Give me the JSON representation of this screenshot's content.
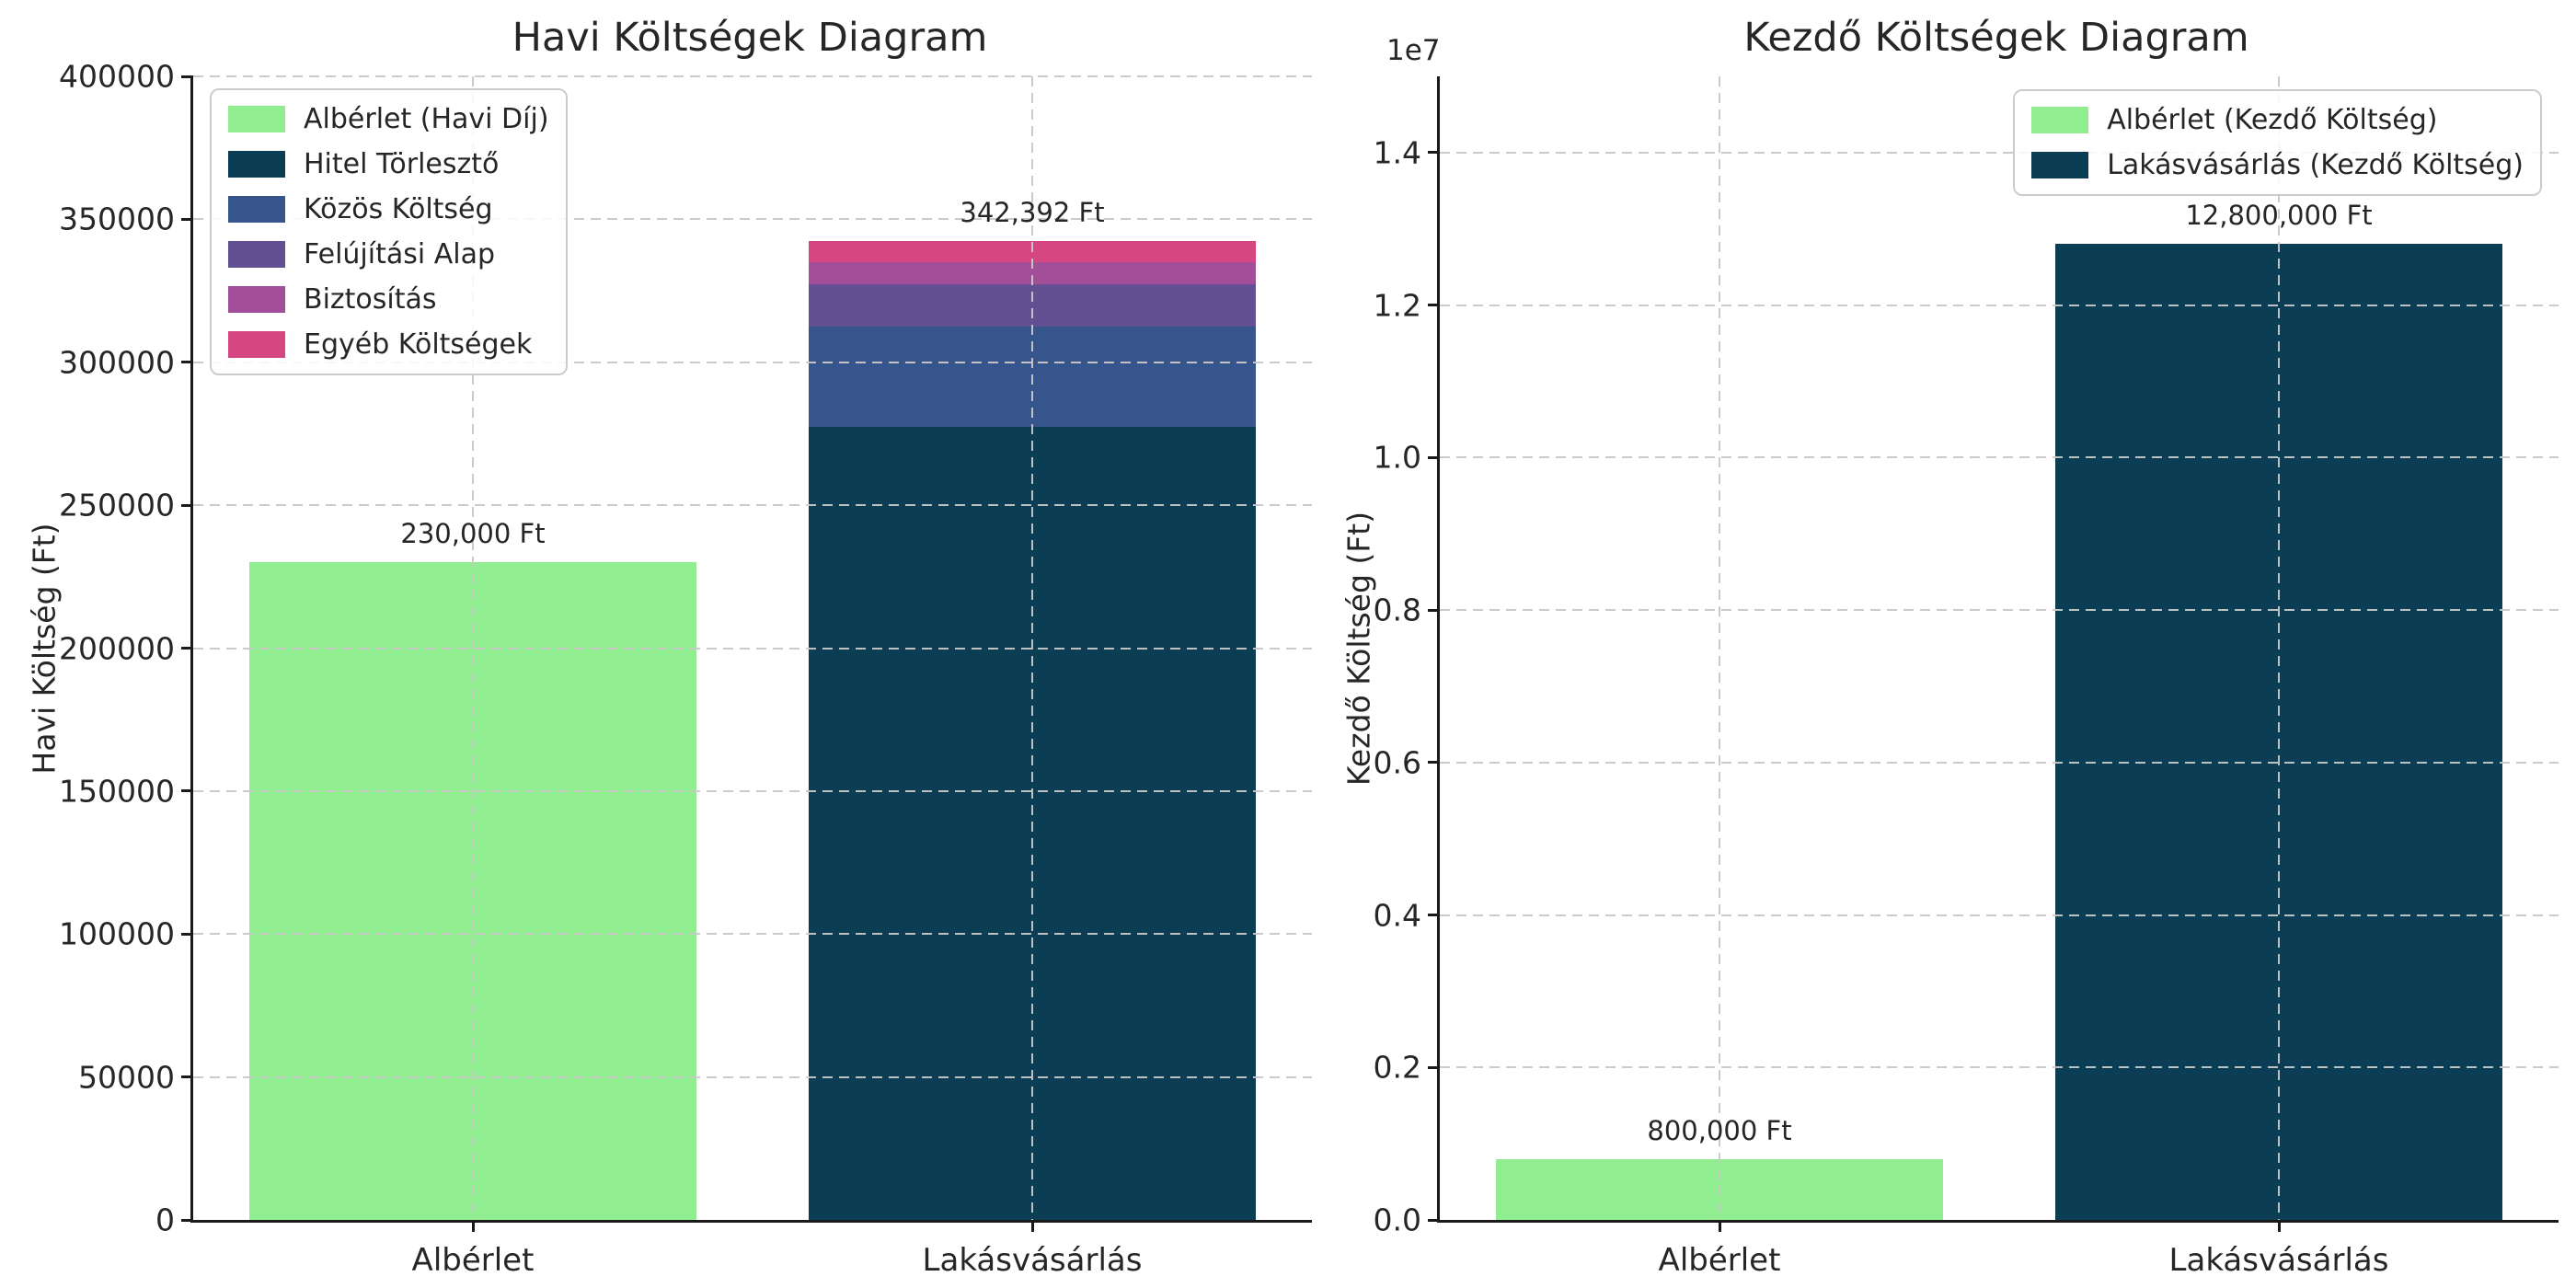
{
  "figure": {
    "background": "#ffffff",
    "text_color": "#262626",
    "grid_color": "#c8c8c8",
    "spine_color": "#1a1a1a"
  },
  "chart_data": [
    {
      "type": "bar",
      "stacked": true,
      "title": "Havi Költségek Diagram",
      "ylabel": "Havi Költség (Ft)",
      "categories": [
        "Albérlet",
        "Lakásvásárlás"
      ],
      "ylim": [
        0,
        400000
      ],
      "yticks": [
        0,
        50000,
        100000,
        150000,
        200000,
        250000,
        300000,
        350000,
        400000
      ],
      "ytick_labels": [
        "0",
        "50000",
        "100000",
        "150000",
        "200000",
        "250000",
        "300000",
        "350000",
        "400000"
      ],
      "grid": true,
      "legend_position": "upper left",
      "series": [
        {
          "name": "Albérlet (Havi Díj)",
          "color": "#90EE90",
          "values": [
            230000,
            0
          ]
        },
        {
          "name": "Hitel Törlesztő",
          "color": "#0B3D55",
          "values": [
            0,
            277392
          ]
        },
        {
          "name": "Közös Költség",
          "color": "#36558C",
          "values": [
            0,
            35000
          ]
        },
        {
          "name": "Felújítási Alap",
          "color": "#625092",
          "values": [
            0,
            15000
          ]
        },
        {
          "name": "Biztosítás",
          "color": "#A34E98",
          "values": [
            0,
            7500
          ]
        },
        {
          "name": "Egyéb Költségek",
          "color": "#D64682",
          "values": [
            0,
            7500
          ]
        }
      ],
      "bar_totals": [
        230000,
        342392
      ],
      "bar_total_labels": [
        "230,000 Ft",
        "342,392 Ft"
      ]
    },
    {
      "type": "bar",
      "stacked": false,
      "title": "Kezdő Költségek Diagram",
      "ylabel": "Kezdő Költség (Ft)",
      "categories": [
        "Albérlet",
        "Lakásvásárlás"
      ],
      "ylim": [
        0,
        15000000
      ],
      "yticks": [
        0,
        2000000,
        4000000,
        6000000,
        8000000,
        10000000,
        12000000,
        14000000
      ],
      "ytick_labels": [
        "0.0",
        "0.2",
        "0.4",
        "0.6",
        "0.8",
        "1.0",
        "1.2",
        "1.4"
      ],
      "offset_text": "1e7",
      "grid": true,
      "legend_position": "upper right",
      "series": [
        {
          "name": "Albérlet (Kezdő Költség)",
          "color": "#90EE90",
          "values": [
            800000,
            0
          ]
        },
        {
          "name": "Lakásvásárlás (Kezdő Költség)",
          "color": "#0B3D55",
          "values": [
            0,
            12800000
          ]
        }
      ],
      "bar_totals": [
        800000,
        12800000
      ],
      "bar_total_labels": [
        "800,000 Ft",
        "12,800,000 Ft"
      ]
    }
  ]
}
